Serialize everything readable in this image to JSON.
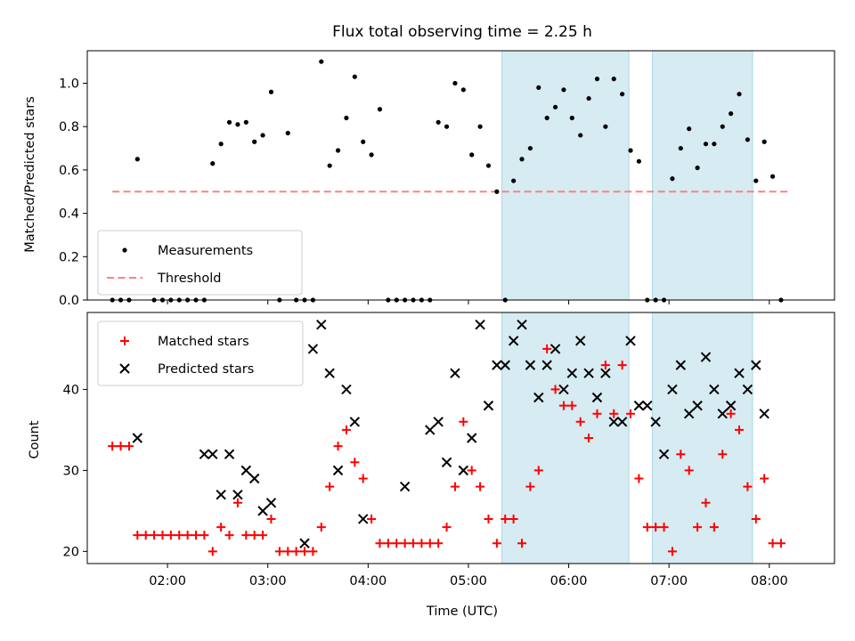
{
  "chart_data": [
    {
      "type": "scatter",
      "title": "Flux total observing time = 2.25 h",
      "xlabel": "",
      "ylabel": "Matched/Predicted stars",
      "ylim": [
        0,
        1.15
      ],
      "yticks": [
        "0.0",
        "0.2",
        "0.4",
        "0.6",
        "0.8",
        "1.0"
      ],
      "shaded_spans": [
        [
          "05:20",
          "06:36"
        ],
        [
          "06:50",
          "07:50"
        ]
      ],
      "legend": {
        "placement": "lower-left",
        "entries": [
          "Measurements",
          "Threshold"
        ]
      },
      "threshold": {
        "name": "Threshold",
        "y": 0.5,
        "x_range": [
          "01:27",
          "08:12"
        ],
        "color": "#ff8080"
      },
      "series": [
        {
          "name": "Measurements",
          "marker": "dot",
          "color": "#000000",
          "x": [
            "01:27",
            "01:32",
            "01:37",
            "01:42",
            "01:52",
            "01:57",
            "02:02",
            "02:07",
            "02:12",
            "02:17",
            "02:22",
            "02:27",
            "02:32",
            "02:37",
            "02:42",
            "02:47",
            "02:52",
            "02:57",
            "03:02",
            "03:07",
            "03:12",
            "03:17",
            "03:22",
            "03:27",
            "03:32",
            "03:37",
            "03:42",
            "03:47",
            "03:52",
            "03:57",
            "04:02",
            "04:07",
            "04:12",
            "04:17",
            "04:22",
            "04:27",
            "04:32",
            "04:37",
            "04:42",
            "04:47",
            "04:52",
            "04:57",
            "05:02",
            "05:07",
            "05:12",
            "05:17",
            "05:22",
            "05:27",
            "05:32",
            "05:37",
            "05:42",
            "05:47",
            "05:52",
            "05:57",
            "06:02",
            "06:07",
            "06:12",
            "06:17",
            "06:22",
            "06:27",
            "06:32",
            "06:37",
            "06:42",
            "06:47",
            "06:52",
            "06:57",
            "07:02",
            "07:07",
            "07:12",
            "07:17",
            "07:22",
            "07:27",
            "07:32",
            "07:37",
            "07:42",
            "07:47",
            "07:52",
            "07:57",
            "08:02",
            "08:07"
          ],
          "y": [
            0,
            0,
            0,
            0.65,
            0,
            0,
            0,
            0,
            0,
            0,
            0,
            0.63,
            0.72,
            0.82,
            0.81,
            0.82,
            0.73,
            0.76,
            0.96,
            0,
            0.77,
            0,
            0,
            0,
            1.1,
            0.62,
            0.69,
            0.84,
            1.03,
            0.73,
            0.67,
            0.88,
            0,
            0,
            0,
            0,
            0,
            0,
            0.82,
            0.8,
            1.0,
            0.97,
            0.67,
            0.8,
            0.62,
            0.5,
            0,
            0.55,
            0.65,
            0.7,
            0.98,
            0.84,
            0.89,
            0.97,
            0.84,
            0.76,
            0.93,
            1.02,
            0.8,
            1.02,
            0.95,
            0.69,
            0.64,
            0,
            0,
            0,
            0.56,
            0.7,
            0.79,
            0.61,
            0.72,
            0.72,
            0.8,
            0.86,
            0.95,
            0.74,
            0.55,
            0.73,
            0.57,
            0
          ]
        }
      ]
    },
    {
      "type": "scatter",
      "title": "",
      "xlabel": "Time (UTC)",
      "ylabel": "Count",
      "ylim": [
        18.5,
        49.5
      ],
      "yticks": [
        "20",
        "30",
        "40"
      ],
      "xticks": [
        "02:00",
        "03:00",
        "04:00",
        "05:00",
        "06:00",
        "07:00",
        "08:00"
      ],
      "xlim": [
        "01:12",
        "08:39"
      ],
      "shaded_spans": [
        [
          "05:20",
          "06:36"
        ],
        [
          "06:50",
          "07:50"
        ]
      ],
      "legend": {
        "placement": "upper-left",
        "entries": [
          "Matched stars",
          "Predicted stars"
        ]
      },
      "series": [
        {
          "name": "Matched stars",
          "marker": "plus",
          "color": "#ff0000",
          "x": [
            "01:27",
            "01:32",
            "01:37",
            "01:42",
            "01:47",
            "01:52",
            "01:57",
            "02:02",
            "02:07",
            "02:12",
            "02:17",
            "02:22",
            "02:27",
            "02:32",
            "02:37",
            "02:42",
            "02:47",
            "02:52",
            "02:57",
            "03:02",
            "03:07",
            "03:12",
            "03:17",
            "03:22",
            "03:27",
            "03:32",
            "03:37",
            "03:42",
            "03:47",
            "03:52",
            "03:57",
            "04:02",
            "04:07",
            "04:12",
            "04:17",
            "04:22",
            "04:27",
            "04:32",
            "04:37",
            "04:42",
            "04:47",
            "04:52",
            "04:57",
            "05:02",
            "05:07",
            "05:12",
            "05:17",
            "05:22",
            "05:27",
            "05:32",
            "05:37",
            "05:42",
            "05:47",
            "05:52",
            "05:57",
            "06:02",
            "06:07",
            "06:12",
            "06:17",
            "06:22",
            "06:27",
            "06:32",
            "06:37",
            "06:42",
            "06:47",
            "06:52",
            "06:57",
            "07:02",
            "07:07",
            "07:12",
            "07:17",
            "07:22",
            "07:27",
            "07:32",
            "07:37",
            "07:42",
            "07:47",
            "07:52",
            "07:57",
            "08:02",
            "08:07"
          ],
          "y": [
            33,
            33,
            33,
            22,
            22,
            22,
            22,
            22,
            22,
            22,
            22,
            22,
            20,
            23,
            22,
            26,
            22,
            22,
            22,
            24,
            20,
            20,
            20,
            20,
            20,
            23,
            28,
            33,
            35,
            31,
            29,
            24,
            21,
            21,
            21,
            21,
            21,
            21,
            21,
            21,
            23,
            28,
            36,
            30,
            28,
            24,
            21,
            24,
            24,
            21,
            28,
            30,
            45,
            40,
            38,
            38,
            36,
            34,
            37,
            43,
            37,
            43,
            37,
            29,
            23,
            23,
            23,
            20,
            32,
            30,
            23,
            26,
            23,
            32,
            37,
            35,
            28,
            24,
            29,
            21,
            21
          ]
        },
        {
          "name": "Predicted stars",
          "marker": "x",
          "color": "#000000",
          "x": [
            "01:42",
            "02:22",
            "02:27",
            "02:32",
            "02:37",
            "02:42",
            "02:47",
            "02:52",
            "02:57",
            "03:02",
            "03:22",
            "03:27",
            "03:32",
            "03:37",
            "03:42",
            "03:47",
            "03:52",
            "03:57",
            "04:22",
            "04:37",
            "04:42",
            "04:47",
            "04:52",
            "04:57",
            "05:02",
            "05:07",
            "05:12",
            "05:17",
            "05:22",
            "05:27",
            "05:32",
            "05:37",
            "05:42",
            "05:47",
            "05:52",
            "05:57",
            "06:02",
            "06:07",
            "06:12",
            "06:17",
            "06:22",
            "06:27",
            "06:32",
            "06:37",
            "06:42",
            "06:47",
            "06:52",
            "06:57",
            "07:02",
            "07:07",
            "07:12",
            "07:17",
            "07:22",
            "07:27",
            "07:32",
            "07:37",
            "07:42",
            "07:47",
            "07:52",
            "07:57"
          ],
          "y": [
            34,
            32,
            32,
            27,
            32,
            27,
            30,
            29,
            25,
            26,
            21,
            45,
            48,
            42,
            30,
            40,
            36,
            24,
            28,
            35,
            36,
            31,
            42,
            30,
            34,
            48,
            38,
            43,
            43,
            46,
            48,
            43,
            39,
            43,
            45,
            40,
            42,
            46,
            42,
            39,
            42,
            36,
            36,
            46,
            38,
            38,
            36,
            32,
            40,
            43,
            37,
            38,
            44,
            40,
            37,
            38,
            42,
            40,
            43,
            37
          ]
        }
      ]
    }
  ]
}
